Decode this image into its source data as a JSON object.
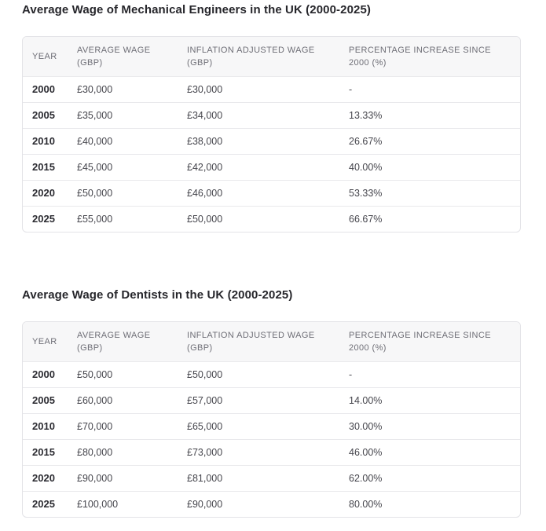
{
  "page_background": "#ffffff",
  "colors": {
    "title_text": "#26262b",
    "header_text": "#6e6e76",
    "header_background": "#f7f7f8",
    "card_border": "#e3e3e7",
    "row_divider": "#e9e9ec",
    "year_text": "#2b2b31",
    "cell_text": "#46464d"
  },
  "chart_data": [
    {
      "type": "table",
      "title": "Average Wage of Mechanical Engineers in the UK (2000-2025)",
      "columns": [
        "YEAR",
        "AVERAGE WAGE (GBP)",
        "INFLATION ADJUSTED WAGE (GBP)",
        "PERCENTAGE INCREASE SINCE 2000 (%)"
      ],
      "rows": [
        [
          "2000",
          "£30,000",
          "£30,000",
          "-"
        ],
        [
          "2005",
          "£35,000",
          "£34,000",
          "13.33%"
        ],
        [
          "2010",
          "£40,000",
          "£38,000",
          "26.67%"
        ],
        [
          "2015",
          "£45,000",
          "£42,000",
          "40.00%"
        ],
        [
          "2020",
          "£50,000",
          "£46,000",
          "53.33%"
        ],
        [
          "2025",
          "£55,000",
          "£50,000",
          "66.67%"
        ]
      ]
    },
    {
      "type": "table",
      "title": "Average Wage of Dentists in the UK (2000-2025)",
      "columns": [
        "YEAR",
        "AVERAGE WAGE (GBP)",
        "INFLATION ADJUSTED WAGE (GBP)",
        "PERCENTAGE INCREASE SINCE 2000 (%)"
      ],
      "rows": [
        [
          "2000",
          "£50,000",
          "£50,000",
          "-"
        ],
        [
          "2005",
          "£60,000",
          "£57,000",
          "14.00%"
        ],
        [
          "2010",
          "£70,000",
          "£65,000",
          "30.00%"
        ],
        [
          "2015",
          "£80,000",
          "£73,000",
          "46.00%"
        ],
        [
          "2020",
          "£90,000",
          "£81,000",
          "62.00%"
        ],
        [
          "2025",
          "£100,000",
          "£90,000",
          "80.00%"
        ]
      ]
    }
  ]
}
